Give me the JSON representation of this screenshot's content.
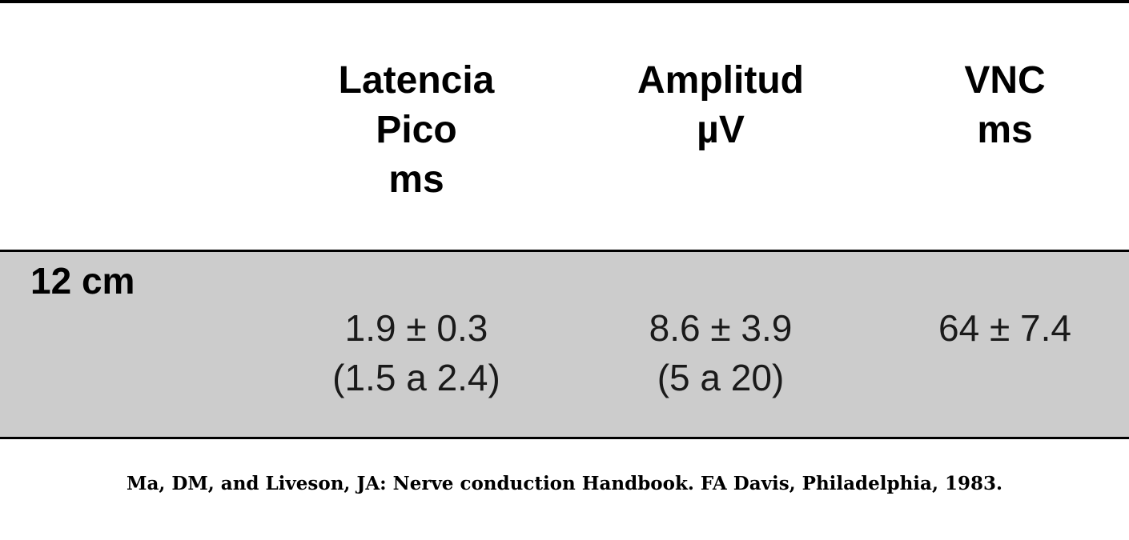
{
  "table": {
    "headers": [
      {
        "lines": [
          "Latencia",
          "Pico",
          "ms"
        ]
      },
      {
        "lines": [
          "Amplitud",
          "µV"
        ]
      },
      {
        "lines": [
          "VNC",
          "ms"
        ]
      }
    ],
    "rows": [
      {
        "label": "12 cm",
        "cells": [
          {
            "lines": [
              "1.9 ± 0.3",
              "(1.5 a 2.4)"
            ]
          },
          {
            "lines": [
              "8.6 ± 3.9",
              "(5 a 20)"
            ]
          },
          {
            "lines": [
              "64 ± 7.4"
            ]
          }
        ]
      }
    ],
    "colors": {
      "row_background": "#cccccc",
      "rule": "#000000"
    }
  },
  "citation": "Ma, DM, and Liveson, JA: Nerve conduction Handbook. FA Davis, Philadelphia, 1983."
}
